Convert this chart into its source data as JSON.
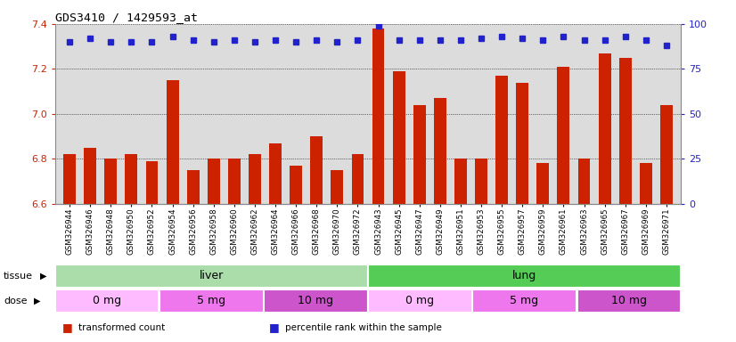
{
  "title": "GDS3410 / 1429593_at",
  "samples": [
    "GSM326944",
    "GSM326946",
    "GSM326948",
    "GSM326950",
    "GSM326952",
    "GSM326954",
    "GSM326956",
    "GSM326958",
    "GSM326960",
    "GSM326962",
    "GSM326964",
    "GSM326966",
    "GSM326968",
    "GSM326970",
    "GSM326972",
    "GSM326943",
    "GSM326945",
    "GSM326947",
    "GSM326949",
    "GSM326951",
    "GSM326953",
    "GSM326955",
    "GSM326957",
    "GSM326959",
    "GSM326961",
    "GSM326963",
    "GSM326965",
    "GSM326967",
    "GSM326969",
    "GSM326971"
  ],
  "bar_values": [
    6.82,
    6.85,
    6.8,
    6.82,
    6.79,
    7.15,
    6.75,
    6.8,
    6.8,
    6.82,
    6.87,
    6.77,
    6.9,
    6.75,
    6.82,
    7.38,
    7.19,
    7.04,
    7.07,
    6.8,
    6.8,
    7.17,
    7.14,
    6.78,
    7.21,
    6.8,
    7.27,
    7.25,
    6.78,
    7.04
  ],
  "percentile_values": [
    90,
    92,
    90,
    90,
    90,
    93,
    91,
    90,
    91,
    90,
    91,
    90,
    91,
    90,
    91,
    99,
    91,
    91,
    91,
    91,
    92,
    93,
    92,
    91,
    93,
    91,
    91,
    93,
    91,
    88
  ],
  "ylim_left": [
    6.6,
    7.4
  ],
  "ylim_right": [
    0,
    100
  ],
  "yticks_left": [
    6.6,
    6.8,
    7.0,
    7.2,
    7.4
  ],
  "yticks_right": [
    0,
    25,
    50,
    75,
    100
  ],
  "bar_color": "#cc2200",
  "dot_color": "#2222cc",
  "tissue_groups": [
    {
      "label": "liver",
      "start": 0,
      "end": 14,
      "color": "#aaddaa"
    },
    {
      "label": "lung",
      "start": 15,
      "end": 29,
      "color": "#55cc55"
    }
  ],
  "dose_groups": [
    {
      "label": "0 mg",
      "start": 0,
      "end": 4,
      "color": "#ffbbff"
    },
    {
      "label": "5 mg",
      "start": 5,
      "end": 9,
      "color": "#ee77ee"
    },
    {
      "label": "10 mg",
      "start": 10,
      "end": 14,
      "color": "#cc55cc"
    },
    {
      "label": "0 mg",
      "start": 15,
      "end": 19,
      "color": "#ffbbff"
    },
    {
      "label": "5 mg",
      "start": 20,
      "end": 24,
      "color": "#ee77ee"
    },
    {
      "label": "10 mg",
      "start": 25,
      "end": 29,
      "color": "#cc55cc"
    }
  ],
  "legend_items": [
    {
      "label": "transformed count",
      "color": "#cc2200"
    },
    {
      "label": "percentile rank within the sample",
      "color": "#2222cc"
    }
  ],
  "tissue_label": "tissue",
  "dose_label": "dose",
  "plot_bg": "#dcdcdc"
}
